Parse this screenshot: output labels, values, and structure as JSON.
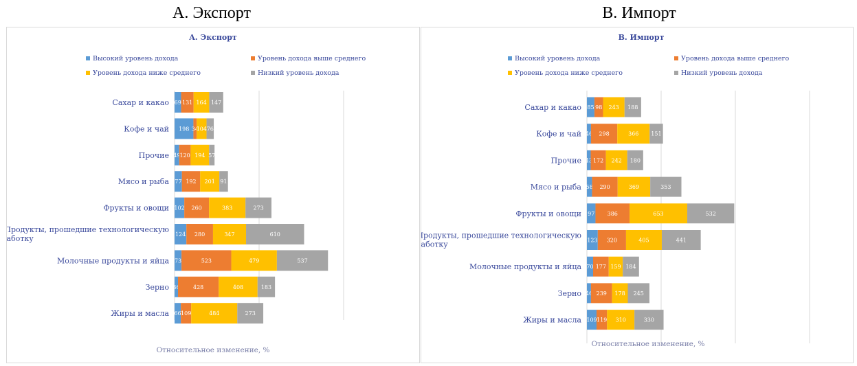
{
  "outer_titles": [
    "A. Экспорт",
    "B. Импорт"
  ],
  "chart_data": [
    {
      "type": "bar",
      "orientation": "horizontal",
      "stacked": true,
      "title": "A. Экспорт",
      "xlabel": "Относительное изменение, %",
      "legend": "top",
      "grid": true,
      "categories": [
        "Сахар и какао",
        "Кофе и чай",
        "Прочие",
        "Мясо и рыба",
        "Фрукты и овощи",
        "Продукты, прошедшие технологическую обработку",
        "Молочные продукты и яйца",
        "Зерно",
        "Жиры и масла"
      ],
      "series": [
        {
          "name": "Высокий уровень дохода",
          "color": "#5b9bd5",
          "values": [
            69,
            198,
            49,
            77,
            102,
            124,
            73,
            36,
            66
          ]
        },
        {
          "name": "Уровень дохода выше среднего",
          "color": "#ed7d31",
          "values": [
            131,
            34,
            120,
            192,
            260,
            280,
            523,
            428,
            109
          ]
        },
        {
          "name": "Уровень дохода ниже среднего",
          "color": "#ffc000",
          "values": [
            164,
            104,
            194,
            201,
            383,
            347,
            479,
            408,
            484
          ]
        },
        {
          "name": "Низкий уровень дохода",
          "color": "#a5a5a5",
          "values": [
            147,
            76,
            57,
            91,
            273,
            610,
            537,
            183,
            273
          ]
        }
      ]
    },
    {
      "type": "bar",
      "orientation": "horizontal",
      "stacked": true,
      "title": "B. Импорт",
      "xlabel": "Относительное изменение, %",
      "legend": "top",
      "grid": true,
      "categories": [
        "Сахар и какао",
        "Кофе и чай",
        "Прочие",
        "Мясо и рыба",
        "Фрукты и овощи",
        "Продукты, прошедшие технологическую обработку",
        "Молочные продукты и яйца",
        "Зерно",
        "Жиры и масла"
      ],
      "series": [
        {
          "name": "Высокий уровень дохода",
          "color": "#5b9bd5",
          "values": [
            85,
            46,
            43,
            58,
            97,
            123,
            70,
            46,
            109
          ]
        },
        {
          "name": "Уровень дохода выше среднего",
          "color": "#ed7d31",
          "values": [
            98,
            298,
            172,
            290,
            386,
            320,
            177,
            239,
            119
          ]
        },
        {
          "name": "Уровень дохода ниже среднего",
          "color": "#ffc000",
          "values": [
            243,
            366,
            242,
            369,
            653,
            405,
            159,
            178,
            310
          ]
        },
        {
          "name": "Низкий уровень дохода",
          "color": "#a5a5a5",
          "values": [
            188,
            151,
            180,
            353,
            532,
            441,
            184,
            245,
            330
          ]
        }
      ]
    }
  ]
}
